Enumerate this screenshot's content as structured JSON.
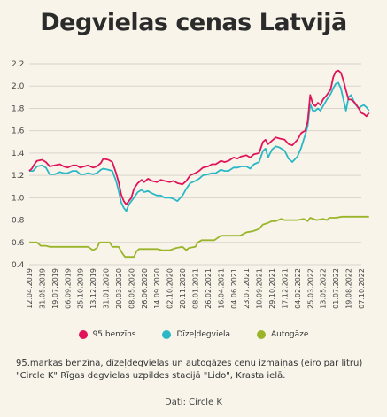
{
  "title": "Degvielas cenas Latvijā",
  "caption": "95.markas benzīna, dīzeļdegvielas un autogāzes cenu izmaiņas (eiro par litru) \"Circle K\" Rīgas degvielas uzpildes stacijā \"Lido\", Krasta ielā.",
  "source": "Dati: Circle K",
  "legend": [
    {
      "label": "95.benzīns",
      "color": "#e0145a"
    },
    {
      "label": "Dīzeļdegviela",
      "color": "#2bb8c6"
    },
    {
      "label": "Autogāze",
      "color": "#9bb52a"
    }
  ],
  "chart_data": {
    "type": "line",
    "ylim": [
      0.4,
      2.2
    ],
    "yticks": [
      "0.4",
      "0.6",
      "0.8",
      "1.0",
      "1.2",
      "1.4",
      "1.6",
      "1.8",
      "2.0",
      "2.2"
    ],
    "x_tick_labels": [
      "12.04.2019",
      "31.05.2019",
      "19.07.2019",
      "06.09.2019",
      "25.10.2019",
      "13.12.2019",
      "31.01.2020",
      "20.03.2020",
      "08.05.2020",
      "26.06.2020",
      "14.09.2020",
      "02.10.2020",
      "20.11.2020",
      "08.01.2021",
      "26.02.2021",
      "16.04.2021",
      "04.06.2021",
      "23.07.2021",
      "10.09.2021",
      "29.10.2021",
      "17.12.2021",
      "04.02.2022",
      "25.03.2022",
      "13.05.2022",
      "01.07.2022",
      "19.08.2022",
      "07.10.2022"
    ],
    "series": [
      {
        "name": "95.benzīns",
        "color": "#e0145a",
        "points": [
          [
            0,
            1.24
          ],
          [
            0.2,
            1.26
          ],
          [
            0.4,
            1.3
          ],
          [
            0.6,
            1.33
          ],
          [
            1,
            1.34
          ],
          [
            1.3,
            1.32
          ],
          [
            1.6,
            1.28
          ],
          [
            2,
            1.29
          ],
          [
            2.4,
            1.3
          ],
          [
            2.7,
            1.28
          ],
          [
            3,
            1.27
          ],
          [
            3.4,
            1.29
          ],
          [
            3.7,
            1.29
          ],
          [
            4,
            1.27
          ],
          [
            4.3,
            1.28
          ],
          [
            4.6,
            1.29
          ],
          [
            5,
            1.27
          ],
          [
            5.3,
            1.28
          ],
          [
            5.6,
            1.31
          ],
          [
            5.8,
            1.35
          ],
          [
            6.2,
            1.34
          ],
          [
            6.5,
            1.32
          ],
          [
            6.8,
            1.22
          ],
          [
            7,
            1.14
          ],
          [
            7.2,
            1.03
          ],
          [
            7.4,
            0.97
          ],
          [
            7.6,
            0.94
          ],
          [
            7.8,
            0.97
          ],
          [
            8,
            1.0
          ],
          [
            8.2,
            1.08
          ],
          [
            8.5,
            1.13
          ],
          [
            8.8,
            1.16
          ],
          [
            9,
            1.14
          ],
          [
            9.3,
            1.17
          ],
          [
            9.6,
            1.15
          ],
          [
            10,
            1.14
          ],
          [
            10.3,
            1.16
          ],
          [
            10.6,
            1.15
          ],
          [
            11,
            1.14
          ],
          [
            11.3,
            1.15
          ],
          [
            11.6,
            1.13
          ],
          [
            12,
            1.12
          ],
          [
            12.3,
            1.15
          ],
          [
            12.6,
            1.2
          ],
          [
            13,
            1.22
          ],
          [
            13.3,
            1.24
          ],
          [
            13.6,
            1.27
          ],
          [
            14,
            1.28
          ],
          [
            14.3,
            1.3
          ],
          [
            14.6,
            1.3
          ],
          [
            15,
            1.33
          ],
          [
            15.3,
            1.32
          ],
          [
            15.6,
            1.33
          ],
          [
            16,
            1.36
          ],
          [
            16.3,
            1.35
          ],
          [
            16.6,
            1.37
          ],
          [
            17,
            1.38
          ],
          [
            17.3,
            1.36
          ],
          [
            17.6,
            1.39
          ],
          [
            18,
            1.4
          ],
          [
            18.3,
            1.5
          ],
          [
            18.5,
            1.52
          ],
          [
            18.7,
            1.48
          ],
          [
            19,
            1.51
          ],
          [
            19.3,
            1.54
          ],
          [
            19.6,
            1.53
          ],
          [
            20,
            1.52
          ],
          [
            20.3,
            1.48
          ],
          [
            20.6,
            1.47
          ],
          [
            21,
            1.52
          ],
          [
            21.3,
            1.58
          ],
          [
            21.6,
            1.6
          ],
          [
            21.8,
            1.68
          ],
          [
            22,
            1.92
          ],
          [
            22.2,
            1.84
          ],
          [
            22.4,
            1.82
          ],
          [
            22.6,
            1.85
          ],
          [
            22.8,
            1.83
          ],
          [
            23,
            1.88
          ],
          [
            23.3,
            1.92
          ],
          [
            23.6,
            1.97
          ],
          [
            23.8,
            2.08
          ],
          [
            24,
            2.13
          ],
          [
            24.2,
            2.14
          ],
          [
            24.4,
            2.12
          ],
          [
            24.6,
            2.05
          ],
          [
            24.8,
            1.96
          ],
          [
            25,
            1.88
          ],
          [
            25.2,
            1.88
          ],
          [
            25.5,
            1.85
          ],
          [
            25.8,
            1.8
          ],
          [
            26,
            1.76
          ],
          [
            26.2,
            1.75
          ],
          [
            26.4,
            1.73
          ],
          [
            26.6,
            1.76
          ]
        ]
      },
      {
        "name": "Dīzeļdegviela",
        "color": "#2bb8c6",
        "points": [
          [
            0,
            1.24
          ],
          [
            0.3,
            1.24
          ],
          [
            0.6,
            1.28
          ],
          [
            1,
            1.29
          ],
          [
            1.3,
            1.27
          ],
          [
            1.6,
            1.21
          ],
          [
            2,
            1.21
          ],
          [
            2.4,
            1.23
          ],
          [
            2.7,
            1.22
          ],
          [
            3,
            1.22
          ],
          [
            3.4,
            1.24
          ],
          [
            3.7,
            1.24
          ],
          [
            4,
            1.21
          ],
          [
            4.3,
            1.21
          ],
          [
            4.6,
            1.22
          ],
          [
            5,
            1.21
          ],
          [
            5.3,
            1.22
          ],
          [
            5.6,
            1.25
          ],
          [
            5.8,
            1.26
          ],
          [
            6.2,
            1.25
          ],
          [
            6.5,
            1.24
          ],
          [
            6.8,
            1.15
          ],
          [
            7,
            1.06
          ],
          [
            7.2,
            0.96
          ],
          [
            7.4,
            0.91
          ],
          [
            7.6,
            0.88
          ],
          [
            7.8,
            0.94
          ],
          [
            8,
            0.97
          ],
          [
            8.2,
            1.0
          ],
          [
            8.5,
            1.05
          ],
          [
            8.8,
            1.07
          ],
          [
            9,
            1.05
          ],
          [
            9.3,
            1.06
          ],
          [
            9.6,
            1.04
          ],
          [
            10,
            1.02
          ],
          [
            10.3,
            1.02
          ],
          [
            10.6,
            1.0
          ],
          [
            11,
            1.0
          ],
          [
            11.3,
            0.99
          ],
          [
            11.6,
            0.97
          ],
          [
            12,
            1.02
          ],
          [
            12.3,
            1.08
          ],
          [
            12.6,
            1.13
          ],
          [
            13,
            1.15
          ],
          [
            13.3,
            1.17
          ],
          [
            13.6,
            1.2
          ],
          [
            14,
            1.21
          ],
          [
            14.3,
            1.22
          ],
          [
            14.6,
            1.22
          ],
          [
            15,
            1.25
          ],
          [
            15.3,
            1.24
          ],
          [
            15.6,
            1.24
          ],
          [
            16,
            1.27
          ],
          [
            16.3,
            1.27
          ],
          [
            16.6,
            1.28
          ],
          [
            17,
            1.28
          ],
          [
            17.3,
            1.26
          ],
          [
            17.6,
            1.3
          ],
          [
            18,
            1.32
          ],
          [
            18.3,
            1.42
          ],
          [
            18.5,
            1.44
          ],
          [
            18.7,
            1.36
          ],
          [
            19,
            1.43
          ],
          [
            19.3,
            1.46
          ],
          [
            19.6,
            1.45
          ],
          [
            20,
            1.42
          ],
          [
            20.3,
            1.35
          ],
          [
            20.6,
            1.32
          ],
          [
            21,
            1.37
          ],
          [
            21.3,
            1.45
          ],
          [
            21.6,
            1.56
          ],
          [
            21.8,
            1.64
          ],
          [
            22,
            1.84
          ],
          [
            22.2,
            1.78
          ],
          [
            22.4,
            1.78
          ],
          [
            22.6,
            1.8
          ],
          [
            22.8,
            1.78
          ],
          [
            23,
            1.82
          ],
          [
            23.3,
            1.88
          ],
          [
            23.6,
            1.93
          ],
          [
            23.8,
            1.98
          ],
          [
            24,
            2.02
          ],
          [
            24.2,
            2.03
          ],
          [
            24.4,
            1.98
          ],
          [
            24.6,
            1.88
          ],
          [
            24.8,
            1.78
          ],
          [
            25,
            1.9
          ],
          [
            25.2,
            1.92
          ],
          [
            25.5,
            1.84
          ],
          [
            25.8,
            1.8
          ],
          [
            26,
            1.82
          ],
          [
            26.2,
            1.83
          ],
          [
            26.4,
            1.81
          ],
          [
            26.6,
            1.78
          ]
        ]
      },
      {
        "name": "Autogāze",
        "color": "#9bb52a",
        "points": [
          [
            0,
            0.6
          ],
          [
            0.6,
            0.6
          ],
          [
            0.9,
            0.57
          ],
          [
            1.3,
            0.57
          ],
          [
            1.6,
            0.56
          ],
          [
            2,
            0.56
          ],
          [
            3,
            0.56
          ],
          [
            4,
            0.56
          ],
          [
            4.6,
            0.56
          ],
          [
            5,
            0.53
          ],
          [
            5.3,
            0.55
          ],
          [
            5.5,
            0.6
          ],
          [
            6,
            0.6
          ],
          [
            6.3,
            0.6
          ],
          [
            6.5,
            0.56
          ],
          [
            7,
            0.56
          ],
          [
            7.3,
            0.5
          ],
          [
            7.5,
            0.47
          ],
          [
            8,
            0.47
          ],
          [
            8.2,
            0.47
          ],
          [
            8.4,
            0.52
          ],
          [
            8.6,
            0.54
          ],
          [
            9,
            0.54
          ],
          [
            10,
            0.54
          ],
          [
            10.4,
            0.53
          ],
          [
            11,
            0.53
          ],
          [
            11.5,
            0.55
          ],
          [
            12,
            0.56
          ],
          [
            12.3,
            0.53
          ],
          [
            12.5,
            0.55
          ],
          [
            13,
            0.56
          ],
          [
            13.2,
            0.6
          ],
          [
            13.5,
            0.62
          ],
          [
            14,
            0.62
          ],
          [
            14.5,
            0.62
          ],
          [
            15,
            0.66
          ],
          [
            15.5,
            0.66
          ],
          [
            16,
            0.66
          ],
          [
            16.5,
            0.66
          ],
          [
            17,
            0.69
          ],
          [
            17.5,
            0.7
          ],
          [
            18,
            0.72
          ],
          [
            18.3,
            0.76
          ],
          [
            18.6,
            0.77
          ],
          [
            19,
            0.79
          ],
          [
            19.3,
            0.79
          ],
          [
            19.7,
            0.81
          ],
          [
            20,
            0.8
          ],
          [
            20.5,
            0.8
          ],
          [
            21,
            0.8
          ],
          [
            21.5,
            0.81
          ],
          [
            21.8,
            0.79
          ],
          [
            22,
            0.82
          ],
          [
            22.5,
            0.8
          ],
          [
            23,
            0.81
          ],
          [
            23.3,
            0.8
          ],
          [
            23.5,
            0.82
          ],
          [
            24,
            0.82
          ],
          [
            24.5,
            0.83
          ],
          [
            25,
            0.83
          ],
          [
            26,
            0.83
          ],
          [
            26.6,
            0.83
          ]
        ]
      }
    ]
  }
}
